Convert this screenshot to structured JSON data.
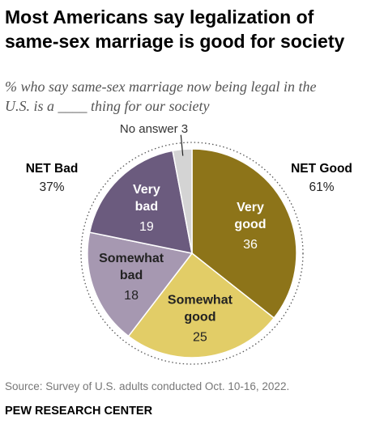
{
  "title_line1": "Most Americans say legalization of",
  "title_line2": "same-sex marriage is good for society",
  "subtitle_line1": "% who say same-sex marriage now being legal in the",
  "subtitle_line2": "U.S. is a ____ thing for our society",
  "chart_data": {
    "type": "pie",
    "slices": [
      {
        "label": [
          "Very",
          "good"
        ],
        "value": 36,
        "color": "#8d7419",
        "text_color": "#ffffff"
      },
      {
        "label": [
          "Somewhat",
          "good"
        ],
        "value": 25,
        "color": "#e2cd67",
        "text_color": "#222222"
      },
      {
        "label": [
          "Somewhat",
          "bad"
        ],
        "value": 18,
        "color": "#a698b1",
        "text_color": "#222222"
      },
      {
        "label": [
          "Very",
          "bad"
        ],
        "value": 19,
        "color": "#6b5b7e",
        "text_color": "#ffffff"
      },
      {
        "label": [
          "No answer"
        ],
        "value": 3,
        "color": "#d4d4d4",
        "text_color": "#444444"
      }
    ],
    "groups": [
      {
        "name": "NET Good",
        "value": "61%"
      },
      {
        "name": "NET Bad",
        "value": "37%"
      }
    ],
    "no_answer_label": "No answer 3"
  },
  "source": "Source: Survey of U.S. adults conducted Oct. 10-16, 2022.",
  "organization": "PEW RESEARCH CENTER"
}
